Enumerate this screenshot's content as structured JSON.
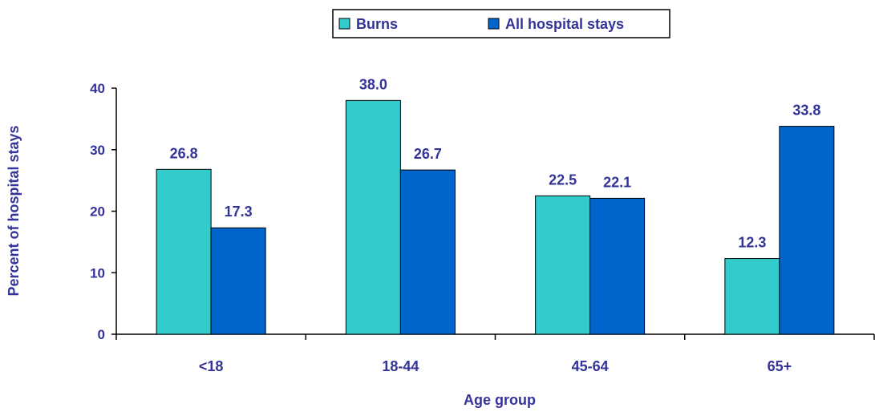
{
  "chart_data": {
    "type": "bar",
    "categories": [
      "<18",
      "18-44",
      "45-64",
      "65+"
    ],
    "series": [
      {
        "name": "Burns",
        "values": [
          26.8,
          38.0,
          22.5,
          12.3
        ],
        "color": "#33CCCC"
      },
      {
        "name": "All hospital stays",
        "values": [
          17.3,
          26.7,
          22.1,
          33.8
        ],
        "color": "#0066CC"
      }
    ],
    "data_labels": [
      [
        "26.8",
        "38.0",
        "22.5",
        "12.3"
      ],
      [
        "17.3",
        "26.7",
        "22.1",
        "33.8"
      ]
    ],
    "xlabel": "Age group",
    "ylabel": "Percent of hospital stays",
    "ylim": [
      0,
      40
    ],
    "yticks": [
      "0",
      "10",
      "20",
      "30",
      "40"
    ],
    "ytick_values": [
      0,
      10,
      20,
      30,
      40
    ],
    "grid": false,
    "legend_position": "top-center",
    "text_color": "#333399"
  }
}
